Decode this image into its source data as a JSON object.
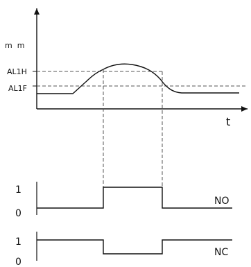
{
  "upper_graph": {
    "y_axis_label": "m  m",
    "x_axis_label": "t",
    "threshold_high_label": "AL1H",
    "threshold_low_label": "AL1F"
  },
  "outputs": {
    "no": {
      "label": "NO",
      "high_level": "1",
      "low_level": "0"
    },
    "nc": {
      "label": "NC",
      "high_level": "1",
      "low_level": "0"
    }
  }
}
